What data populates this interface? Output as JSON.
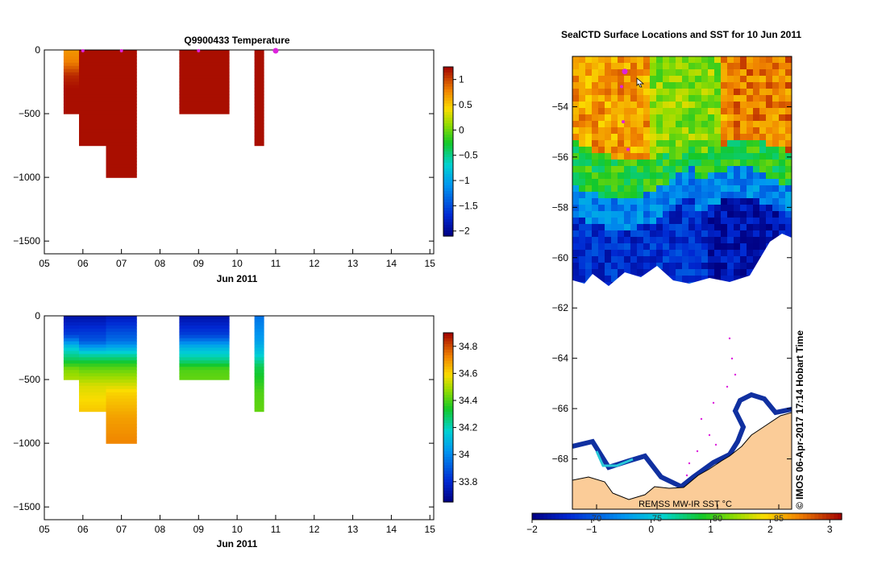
{
  "chart_data": [
    {
      "type": "heatmap",
      "title": "Q9900433  Temperature",
      "xlabel": "Jun 2011",
      "ylabel": "",
      "x_tick_labels": [
        "05",
        "06",
        "07",
        "08",
        "09",
        "10",
        "11",
        "12",
        "13",
        "14",
        "15"
      ],
      "xlim": [
        5,
        15.1
      ],
      "y_ticks": [
        0,
        -500,
        -1000,
        -1500
      ],
      "ylim": [
        -1600,
        0
      ],
      "colorbar": {
        "min": -2.1,
        "max": 1.25,
        "ticks": [
          1,
          0.5,
          0,
          -0.5,
          -1,
          -1.5,
          -2
        ],
        "tick_labels": [
          "1",
          "0.5",
          "0",
          "-0.5",
          "-1",
          "-1.5",
          "-2"
        ]
      },
      "profiles": [
        {
          "x0": 5.5,
          "x1": 5.9,
          "max_depth": 500,
          "stops": [
            [
              0,
              0.7
            ],
            [
              100,
              0.8
            ],
            [
              200,
              1.1
            ],
            [
              300,
              1.2
            ],
            [
              500,
              1.2
            ]
          ]
        },
        {
          "x0": 5.9,
          "x1": 6.6,
          "max_depth": 750,
          "stops": [
            [
              0,
              1.2
            ],
            [
              750,
              1.2
            ]
          ]
        },
        {
          "x0": 6.6,
          "x1": 7.4,
          "max_depth": 1000,
          "stops": [
            [
              0,
              1.2
            ],
            [
              1000,
              1.2
            ]
          ]
        },
        {
          "x0": 8.5,
          "x1": 9.8,
          "max_depth": 500,
          "stops": [
            [
              0,
              1.2
            ],
            [
              500,
              1.2
            ]
          ]
        },
        {
          "x0": 10.45,
          "x1": 10.7,
          "max_depth": 750,
          "stops": [
            [
              0,
              1.2
            ],
            [
              750,
              1.2
            ]
          ]
        }
      ],
      "surface_markers": [
        6.0,
        7.0,
        9.0
      ],
      "current_marker": 11.0
    },
    {
      "type": "heatmap",
      "title": "",
      "xlabel": "Jun 2011",
      "ylabel": "",
      "x_tick_labels": [
        "05",
        "06",
        "07",
        "08",
        "09",
        "10",
        "11",
        "12",
        "13",
        "14",
        "15"
      ],
      "xlim": [
        5,
        15.1
      ],
      "y_ticks": [
        0,
        -500,
        -1000,
        -1500
      ],
      "ylim": [
        -1600,
        0
      ],
      "colorbar": {
        "min": 33.65,
        "max": 34.9,
        "ticks": [
          34.8,
          34.6,
          34.4,
          34.2,
          34,
          33.8
        ],
        "tick_labels": [
          "34.8",
          "34.6",
          "34.4",
          "34.2",
          "34",
          "33.8"
        ]
      },
      "profiles": [
        {
          "x0": 5.5,
          "x1": 5.9,
          "max_depth": 500,
          "stops": [
            [
              0,
              33.72
            ],
            [
              150,
              33.85
            ],
            [
              250,
              34.15
            ],
            [
              350,
              34.3
            ],
            [
              420,
              34.45
            ],
            [
              500,
              34.5
            ]
          ]
        },
        {
          "x0": 5.9,
          "x1": 6.6,
          "max_depth": 750,
          "stops": [
            [
              0,
              33.72
            ],
            [
              200,
              33.9
            ],
            [
              300,
              34.2
            ],
            [
              400,
              34.4
            ],
            [
              550,
              34.55
            ],
            [
              750,
              34.62
            ]
          ]
        },
        {
          "x0": 6.6,
          "x1": 7.4,
          "max_depth": 1000,
          "stops": [
            [
              0,
              33.75
            ],
            [
              200,
              33.95
            ],
            [
              300,
              34.2
            ],
            [
              400,
              34.4
            ],
            [
              600,
              34.6
            ],
            [
              800,
              34.68
            ],
            [
              1000,
              34.72
            ]
          ]
        },
        {
          "x0": 8.5,
          "x1": 9.8,
          "max_depth": 500,
          "stops": [
            [
              0,
              33.72
            ],
            [
              150,
              33.85
            ],
            [
              250,
              34.1
            ],
            [
              350,
              34.25
            ],
            [
              420,
              34.4
            ],
            [
              500,
              34.42
            ]
          ]
        },
        {
          "x0": 10.45,
          "x1": 10.7,
          "max_depth": 750,
          "stops": [
            [
              0,
              33.95
            ],
            [
              200,
              34.05
            ],
            [
              300,
              34.15
            ],
            [
              400,
              34.3
            ],
            [
              500,
              34.35
            ],
            [
              600,
              34.4
            ],
            [
              750,
              34.42
            ]
          ]
        }
      ]
    },
    {
      "type": "heatmap",
      "title": "SealCTD Surface Locations and SST for 10 Jun 2011",
      "ylabel": "",
      "y_ticks": [
        -54,
        -56,
        -58,
        -60,
        -62,
        -64,
        -66,
        -68
      ],
      "y_tick_labels": [
        "-54",
        "-56",
        "-58",
        "-60",
        "-62",
        "-64",
        "-66",
        "-68"
      ],
      "ylim": [
        -70,
        -52
      ],
      "colorbar": {
        "label": "REMSS MW-IR SST °C",
        "min": -2,
        "max": 3.2,
        "ticks": [
          -2,
          -1,
          0,
          1,
          2,
          3
        ],
        "tick_labels": [
          "-2",
          "-1",
          "0",
          "1",
          "2",
          "3"
        ],
        "longitude_ticks": [
          "70",
          "75",
          "80",
          "85"
        ]
      },
      "sst_bands": [
        {
          "lat_from": -52,
          "lat_to": -55.5,
          "sst": 2.4
        },
        {
          "lat_from": -55.5,
          "lat_to": -57,
          "sst": 1.1
        },
        {
          "lat_from": -57,
          "lat_to": -58.5,
          "sst": -0.3
        },
        {
          "lat_from": -58.5,
          "lat_to": -61,
          "sst": -1.3
        }
      ],
      "seal_positions_lat": [
        -52.6,
        -53.2,
        -54.6,
        -55.7
      ],
      "current_position_lat": -52.6,
      "credit": "© IMOS 06-Apr-2017 17:14 Hobart Time"
    }
  ],
  "colors": {
    "land": "#fbcc98",
    "ice": "#ffffff",
    "marker": "#dd22dd",
    "frame": "#000000"
  }
}
